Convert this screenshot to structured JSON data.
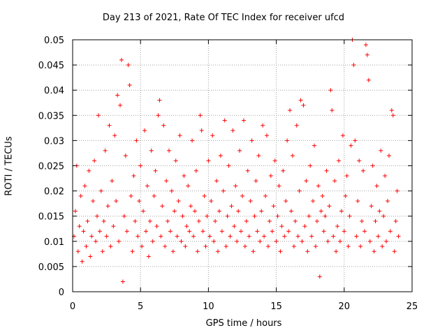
{
  "chart_data": {
    "type": "scatter",
    "title": "Day 213 of 2021, Rate Of TEC Index for receiver ufcd",
    "xlabel": "GPS time / hours",
    "ylabel": "ROTI / TECUs",
    "xlim": [
      0,
      25
    ],
    "ylim": [
      0,
      0.05
    ],
    "xticks": [
      0,
      5,
      10,
      15,
      20,
      25
    ],
    "xtick_labels": [
      "0",
      "5",
      "10",
      "15",
      "20",
      "25"
    ],
    "yticks": [
      0,
      0.005,
      0.01,
      0.015,
      0.02,
      0.025,
      0.03,
      0.035,
      0.04,
      0.045,
      0.05
    ],
    "ytick_labels": [
      "0",
      "0.005",
      "0.01",
      "0.015",
      "0.02",
      "0.025",
      "0.03",
      "0.035",
      "0.04",
      "0.045",
      "0.05"
    ],
    "grid": true,
    "marker": "+",
    "series": [
      {
        "name": "ROTI",
        "color": "#ff0000",
        "points": [
          [
            0.1,
            0.011
          ],
          [
            0.2,
            0.016
          ],
          [
            0.3,
            0.025
          ],
          [
            0.4,
            0.008
          ],
          [
            0.5,
            0.013
          ],
          [
            0.6,
            0.019
          ],
          [
            0.7,
            0.006
          ],
          [
            0.8,
            0.012
          ],
          [
            0.9,
            0.021
          ],
          [
            1.0,
            0.009
          ],
          [
            1.1,
            0.014
          ],
          [
            1.2,
            0.024
          ],
          [
            1.3,
            0.007
          ],
          [
            1.4,
            0.011
          ],
          [
            1.5,
            0.018
          ],
          [
            1.6,
            0.026
          ],
          [
            1.7,
            0.01
          ],
          [
            1.8,
            0.015
          ],
          [
            1.9,
            0.035
          ],
          [
            2.0,
            0.012
          ],
          [
            2.1,
            0.02
          ],
          [
            2.2,
            0.008
          ],
          [
            2.3,
            0.014
          ],
          [
            2.4,
            0.028
          ],
          [
            2.5,
            0.011
          ],
          [
            2.6,
            0.017
          ],
          [
            2.7,
            0.033
          ],
          [
            2.8,
            0.009
          ],
          [
            2.9,
            0.022
          ],
          [
            3.0,
            0.013
          ],
          [
            3.1,
            0.031
          ],
          [
            3.2,
            0.018
          ],
          [
            3.3,
            0.039
          ],
          [
            3.4,
            0.01
          ],
          [
            3.5,
            0.037
          ],
          [
            3.6,
            0.046
          ],
          [
            3.7,
            0.002
          ],
          [
            3.8,
            0.015
          ],
          [
            3.9,
            0.027
          ],
          [
            4.0,
            0.012
          ],
          [
            4.1,
            0.045
          ],
          [
            4.2,
            0.041
          ],
          [
            4.3,
            0.019
          ],
          [
            4.4,
            0.008
          ],
          [
            4.5,
            0.023
          ],
          [
            4.6,
            0.014
          ],
          [
            4.7,
            0.03
          ],
          [
            4.8,
            0.011
          ],
          [
            4.9,
            0.018
          ],
          [
            5.0,
            0.025
          ],
          [
            5.1,
            0.009
          ],
          [
            5.2,
            0.016
          ],
          [
            5.3,
            0.032
          ],
          [
            5.4,
            0.012
          ],
          [
            5.5,
            0.021
          ],
          [
            5.6,
            0.007
          ],
          [
            5.7,
            0.014
          ],
          [
            5.8,
            0.028
          ],
          [
            5.9,
            0.01
          ],
          [
            6.0,
            0.019
          ],
          [
            6.1,
            0.024
          ],
          [
            6.2,
            0.013
          ],
          [
            6.3,
            0.035
          ],
          [
            6.4,
            0.038
          ],
          [
            6.5,
            0.011
          ],
          [
            6.6,
            0.017
          ],
          [
            6.7,
            0.033
          ],
          [
            6.8,
            0.009
          ],
          [
            6.9,
            0.022
          ],
          [
            7.0,
            0.014
          ],
          [
            7.1,
            0.028
          ],
          [
            7.2,
            0.012
          ],
          [
            7.3,
            0.02
          ],
          [
            7.4,
            0.008
          ],
          [
            7.5,
            0.016
          ],
          [
            7.6,
            0.026
          ],
          [
            7.7,
            0.011
          ],
          [
            7.8,
            0.018
          ],
          [
            7.9,
            0.031
          ],
          [
            8.0,
            0.01
          ],
          [
            8.1,
            0.015
          ],
          [
            8.2,
            0.023
          ],
          [
            8.3,
            0.009
          ],
          [
            8.4,
            0.013
          ],
          [
            8.5,
            0.021
          ],
          [
            8.6,
            0.012
          ],
          [
            8.7,
            0.017
          ],
          [
            8.8,
            0.03
          ],
          [
            8.9,
            0.011
          ],
          [
            9.0,
            0.016
          ],
          [
            9.1,
            0.024
          ],
          [
            9.2,
            0.008
          ],
          [
            9.3,
            0.014
          ],
          [
            9.4,
            0.035
          ],
          [
            9.5,
            0.032
          ],
          [
            9.6,
            0.012
          ],
          [
            9.7,
            0.019
          ],
          [
            9.8,
            0.009
          ],
          [
            9.9,
            0.015
          ],
          [
            10.0,
            0.026
          ],
          [
            10.1,
            0.011
          ],
          [
            10.2,
            0.018
          ],
          [
            10.3,
            0.031
          ],
          [
            10.4,
            0.01
          ],
          [
            10.5,
            0.014
          ],
          [
            10.6,
            0.022
          ],
          [
            10.7,
            0.008
          ],
          [
            10.8,
            0.016
          ],
          [
            10.9,
            0.027
          ],
          [
            11.0,
            0.012
          ],
          [
            11.1,
            0.02
          ],
          [
            11.2,
            0.034
          ],
          [
            11.3,
            0.009
          ],
          [
            11.4,
            0.015
          ],
          [
            11.5,
            0.025
          ],
          [
            11.6,
            0.011
          ],
          [
            11.7,
            0.017
          ],
          [
            11.8,
            0.032
          ],
          [
            11.9,
            0.013
          ],
          [
            12.0,
            0.021
          ],
          [
            12.1,
            0.01
          ],
          [
            12.2,
            0.016
          ],
          [
            12.3,
            0.028
          ],
          [
            12.4,
            0.012
          ],
          [
            12.5,
            0.019
          ],
          [
            12.6,
            0.034
          ],
          [
            12.7,
            0.009
          ],
          [
            12.8,
            0.014
          ],
          [
            12.9,
            0.024
          ],
          [
            13.0,
            0.011
          ],
          [
            13.1,
            0.018
          ],
          [
            13.2,
            0.03
          ],
          [
            13.3,
            0.008
          ],
          [
            13.4,
            0.015
          ],
          [
            13.5,
            0.022
          ],
          [
            13.6,
            0.012
          ],
          [
            13.7,
            0.027
          ],
          [
            13.8,
            0.01
          ],
          [
            13.9,
            0.016
          ],
          [
            14.0,
            0.033
          ],
          [
            14.1,
            0.011
          ],
          [
            14.2,
            0.019
          ],
          [
            14.3,
            0.031
          ],
          [
            14.4,
            0.009
          ],
          [
            14.5,
            0.014
          ],
          [
            14.6,
            0.023
          ],
          [
            14.7,
            0.012
          ],
          [
            14.8,
            0.017
          ],
          [
            14.9,
            0.026
          ],
          [
            15.0,
            0.01
          ],
          [
            15.1,
            0.015
          ],
          [
            15.2,
            0.021
          ],
          [
            15.3,
            0.008
          ],
          [
            15.4,
            0.013
          ],
          [
            15.5,
            0.024
          ],
          [
            15.6,
            0.011
          ],
          [
            15.7,
            0.018
          ],
          [
            15.8,
            0.03
          ],
          [
            15.9,
            0.012
          ],
          [
            16.0,
            0.036
          ],
          [
            16.1,
            0.016
          ],
          [
            16.2,
            0.027
          ],
          [
            16.3,
            0.009
          ],
          [
            16.4,
            0.014
          ],
          [
            16.5,
            0.033
          ],
          [
            16.6,
            0.011
          ],
          [
            16.7,
            0.02
          ],
          [
            16.8,
            0.038
          ],
          [
            16.9,
            0.01
          ],
          [
            17.0,
            0.037
          ],
          [
            17.1,
            0.013
          ],
          [
            17.2,
            0.022
          ],
          [
            17.3,
            0.008
          ],
          [
            17.4,
            0.015
          ],
          [
            17.5,
            0.025
          ],
          [
            17.6,
            0.011
          ],
          [
            17.7,
            0.018
          ],
          [
            17.8,
            0.029
          ],
          [
            17.9,
            0.009
          ],
          [
            18.0,
            0.014
          ],
          [
            18.1,
            0.021
          ],
          [
            18.2,
            0.003
          ],
          [
            18.3,
            0.016
          ],
          [
            18.4,
            0.019
          ],
          [
            18.5,
            0.012
          ],
          [
            18.6,
            0.015
          ],
          [
            18.7,
            0.024
          ],
          [
            18.8,
            0.01
          ],
          [
            18.9,
            0.017
          ],
          [
            19.0,
            0.04
          ],
          [
            19.1,
            0.036
          ],
          [
            19.2,
            0.011
          ],
          [
            19.3,
            0.022
          ],
          [
            19.4,
            0.008
          ],
          [
            19.5,
            0.013
          ],
          [
            19.6,
            0.026
          ],
          [
            19.7,
            0.01
          ],
          [
            19.8,
            0.016
          ],
          [
            19.9,
            0.031
          ],
          [
            20.0,
            0.012
          ],
          [
            20.1,
            0.019
          ],
          [
            20.2,
            0.023
          ],
          [
            20.3,
            0.009
          ],
          [
            20.4,
            0.015
          ],
          [
            20.5,
            0.029
          ],
          [
            20.6,
            0.05
          ],
          [
            20.7,
            0.045
          ],
          [
            20.8,
            0.03
          ],
          [
            20.9,
            0.011
          ],
          [
            21.0,
            0.018
          ],
          [
            21.1,
            0.026
          ],
          [
            21.2,
            0.009
          ],
          [
            21.3,
            0.014
          ],
          [
            21.4,
            0.024
          ],
          [
            21.5,
            0.012
          ],
          [
            21.6,
            0.049
          ],
          [
            21.7,
            0.047
          ],
          [
            21.8,
            0.042
          ],
          [
            21.9,
            0.01
          ],
          [
            22.0,
            0.017
          ],
          [
            22.1,
            0.025
          ],
          [
            22.2,
            0.008
          ],
          [
            22.3,
            0.014
          ],
          [
            22.4,
            0.021
          ],
          [
            22.5,
            0.011
          ],
          [
            22.6,
            0.016
          ],
          [
            22.7,
            0.028
          ],
          [
            22.8,
            0.009
          ],
          [
            22.9,
            0.015
          ],
          [
            23.0,
            0.023
          ],
          [
            23.1,
            0.01
          ],
          [
            23.2,
            0.018
          ],
          [
            23.3,
            0.027
          ],
          [
            23.4,
            0.012
          ],
          [
            23.5,
            0.036
          ],
          [
            23.6,
            0.035
          ],
          [
            23.7,
            0.008
          ],
          [
            23.8,
            0.014
          ],
          [
            23.9,
            0.02
          ],
          [
            24.0,
            0.011
          ]
        ]
      }
    ]
  }
}
